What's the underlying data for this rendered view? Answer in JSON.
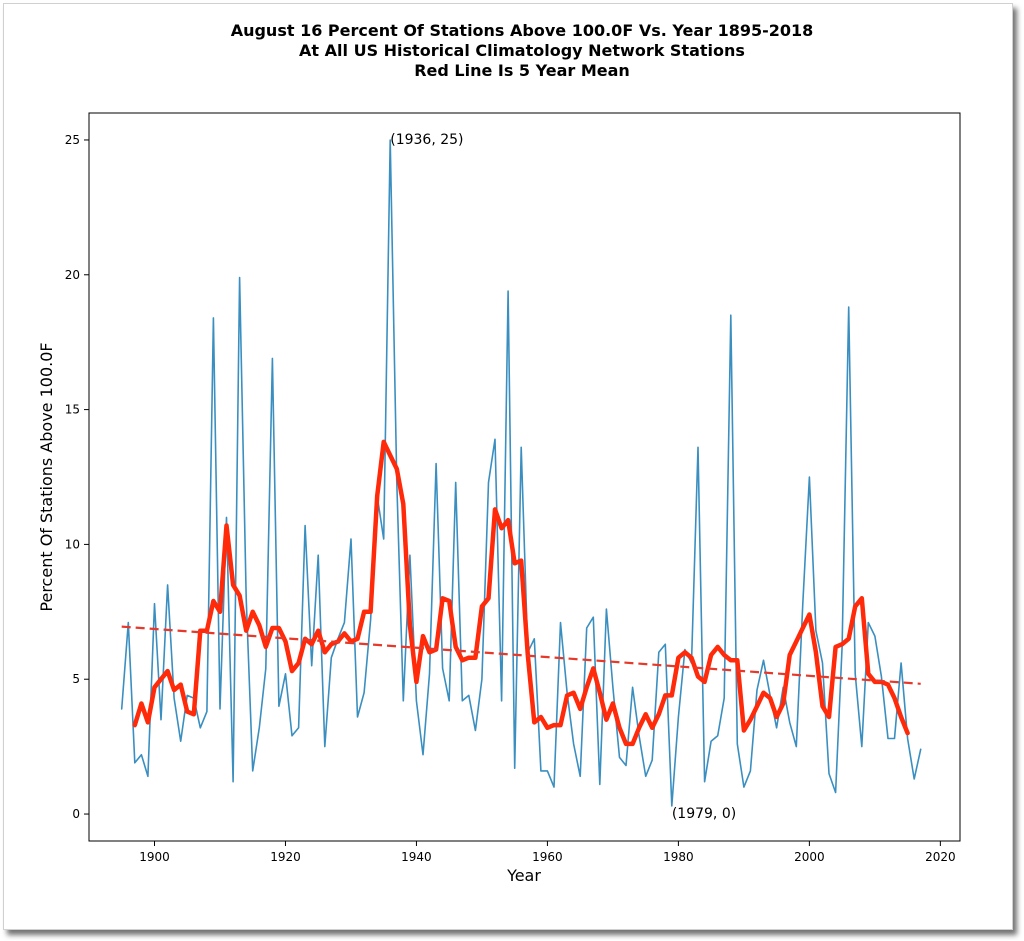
{
  "chart_data": {
    "type": "line",
    "title_lines": [
      "August 16 Percent Of Stations Above 100.0F Vs. Year 1895-2018",
      "At All US Historical Climatology Network Stations",
      "Red Line Is 5 Year Mean"
    ],
    "xlabel": "Year",
    "ylabel": "Percent Of Stations Above 100.0F",
    "xlim": [
      1890,
      2023
    ],
    "ylim": [
      -1,
      26
    ],
    "x_ticks": [
      1900,
      1920,
      1940,
      1960,
      1980,
      2000,
      2020
    ],
    "y_ticks": [
      0,
      5,
      10,
      15,
      20,
      25
    ],
    "grid": false,
    "legend": "none",
    "annotations": [
      {
        "text": "(1936, 25)",
        "x": 1936,
        "y": 25
      },
      {
        "text": "(1979, 0)",
        "x": 1979,
        "y": 0
      }
    ],
    "series": [
      {
        "name": "Percent of stations above 100.0F",
        "color": "#3a8fc0",
        "style": "solid",
        "start_year": 1895,
        "values": [
          3.9,
          7.1,
          1.9,
          2.2,
          1.4,
          7.8,
          3.5,
          8.5,
          4.3,
          2.7,
          4.4,
          4.3,
          3.2,
          3.8,
          18.4,
          3.9,
          11.0,
          1.2,
          19.9,
          8.0,
          1.6,
          3.2,
          5.4,
          16.9,
          4.0,
          5.2,
          2.9,
          3.2,
          10.7,
          5.5,
          9.6,
          2.5,
          5.8,
          6.5,
          7.1,
          10.2,
          3.6,
          4.5,
          7.2,
          11.8,
          10.2,
          25.0,
          12.3,
          4.2,
          9.6,
          4.2,
          2.2,
          5.2,
          13.0,
          5.4,
          4.2,
          12.3,
          4.2,
          4.4,
          3.1,
          5.0,
          12.3,
          13.9,
          4.2,
          19.4,
          1.7,
          13.6,
          6.0,
          6.5,
          1.6,
          1.6,
          1.0,
          7.1,
          4.5,
          2.6,
          1.4,
          6.9,
          7.3,
          1.1,
          7.6,
          4.7,
          2.1,
          1.8,
          4.7,
          2.9,
          1.4,
          2.0,
          6.0,
          6.3,
          0.3,
          3.6,
          6.1,
          5.6,
          13.6,
          1.2,
          2.7,
          2.9,
          4.3,
          18.5,
          2.6,
          1.0,
          1.6,
          4.6,
          5.7,
          4.4,
          3.2,
          4.7,
          3.4,
          2.5,
          7.8,
          12.5,
          6.8,
          5.6,
          1.5,
          0.8,
          6.2,
          18.8,
          5.2,
          2.5,
          7.1,
          6.6,
          5.1,
          2.8,
          2.8,
          5.6,
          2.8,
          1.3,
          2.4
        ]
      },
      {
        "name": "5 Year Mean",
        "color": "#ff2a0a",
        "style": "solid-thick",
        "start_year": 1897,
        "values": [
          3.3,
          4.1,
          3.4,
          4.7,
          5.0,
          5.3,
          4.6,
          4.8,
          3.8,
          3.7,
          6.8,
          6.8,
          7.9,
          7.5,
          10.7,
          8.5,
          8.1,
          6.8,
          7.5,
          7.0,
          6.2,
          6.9,
          6.9,
          6.4,
          5.3,
          5.6,
          6.5,
          6.3,
          6.8,
          6.0,
          6.3,
          6.4,
          6.7,
          6.4,
          6.5,
          7.5,
          7.5,
          11.8,
          13.8,
          13.3,
          12.8,
          11.5,
          7.0,
          4.9,
          6.6,
          6.0,
          6.1,
          8.0,
          7.9,
          6.2,
          5.7,
          5.8,
          5.8,
          7.7,
          8.0,
          11.3,
          10.6,
          10.9,
          9.3,
          9.4,
          5.9,
          3.4,
          3.6,
          3.2,
          3.3,
          3.3,
          4.4,
          4.5,
          3.9,
          4.7,
          5.4,
          4.5,
          3.5,
          4.1,
          3.2,
          2.6,
          2.6,
          3.2,
          3.7,
          3.2,
          3.7,
          4.4,
          4.4,
          5.8,
          6.0,
          5.8,
          5.1,
          4.9,
          5.9,
          6.2,
          5.9,
          5.7,
          5.7,
          3.1,
          3.5,
          4.0,
          4.5,
          4.3,
          3.6,
          4.1,
          5.9,
          6.4,
          6.9,
          7.4,
          6.0,
          4.0,
          3.6,
          6.2,
          6.3,
          6.5,
          7.7,
          8.0,
          5.2,
          4.9,
          4.9,
          4.8,
          4.3,
          3.6,
          3.0
        ]
      },
      {
        "name": "Linear trend",
        "color": "#e8382a",
        "style": "dashed",
        "x": [
          1895,
          2017
        ],
        "values": [
          6.95,
          4.83
        ]
      }
    ]
  }
}
